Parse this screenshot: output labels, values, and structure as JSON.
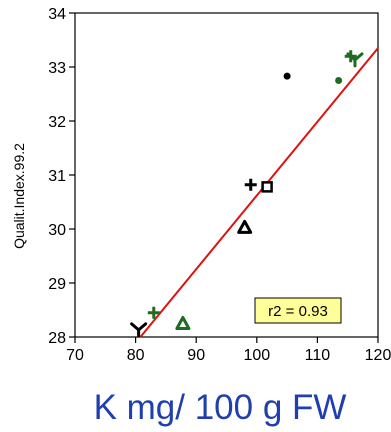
{
  "chart_data": {
    "type": "scatter",
    "xlabel": "K mg/ 100 g FW",
    "ylabel": "Qualit.Index.99.2",
    "xlim": [
      70,
      120
    ],
    "ylim": [
      28,
      34
    ],
    "xticks": [
      70,
      80,
      90,
      100,
      110,
      120
    ],
    "yticks": [
      28,
      29,
      30,
      31,
      32,
      33,
      34
    ],
    "grid": false,
    "points": [
      {
        "x": 80.5,
        "y": 28.15,
        "marker": "y-shape",
        "color": "#000000"
      },
      {
        "x": 83.0,
        "y": 28.45,
        "marker": "plus",
        "color": "#1f6b1f"
      },
      {
        "x": 87.8,
        "y": 28.25,
        "marker": "triangle",
        "color": "#1f6b1f"
      },
      {
        "x": 98.0,
        "y": 30.03,
        "marker": "triangle",
        "color": "#000000"
      },
      {
        "x": 99.0,
        "y": 30.82,
        "marker": "plus",
        "color": "#000000"
      },
      {
        "x": 101.7,
        "y": 30.78,
        "marker": "square",
        "color": "#000000"
      },
      {
        "x": 105.0,
        "y": 32.83,
        "marker": "dot",
        "color": "#000000"
      },
      {
        "x": 113.5,
        "y": 32.75,
        "marker": "dot",
        "color": "#1f6b1f"
      },
      {
        "x": 115.5,
        "y": 33.2,
        "marker": "plus",
        "color": "#1f6b1f"
      },
      {
        "x": 116.2,
        "y": 33.15,
        "marker": "y-shape",
        "color": "#1f6b1f"
      }
    ],
    "fit_line": {
      "x": [
        80.8,
        120
      ],
      "y": [
        28.0,
        33.35
      ],
      "color": "#e01010"
    },
    "annotation": {
      "text": "r2 = 0.93",
      "box_color": "#ffff99",
      "placement": "bottom-right"
    }
  }
}
